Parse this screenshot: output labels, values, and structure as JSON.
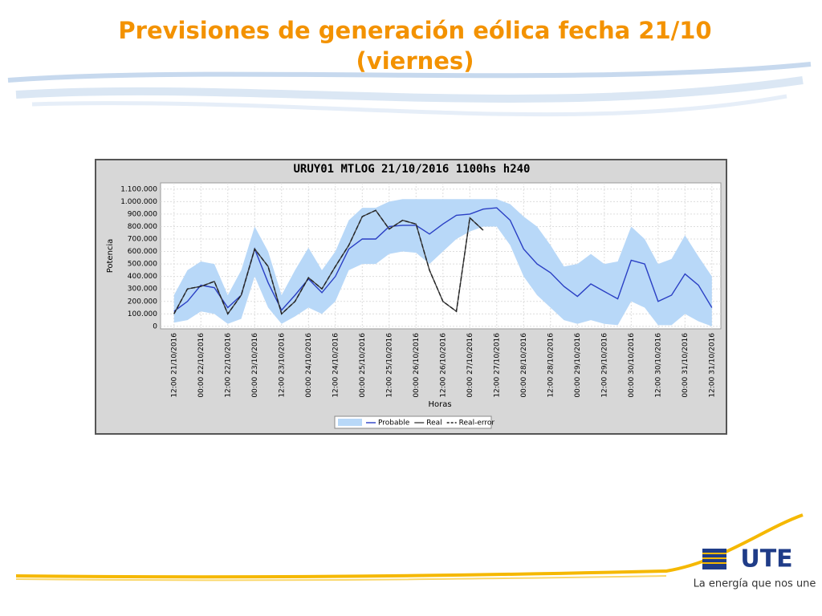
{
  "slide_title": "Previsiones de generación eólica fecha 21/10 (viernes)",
  "logo": {
    "text": "UTE",
    "tagline": "La energía que nos une"
  },
  "chart_data": {
    "type": "line",
    "title": "URUY01 MTLOG 21/10/2016 1100hs  h240",
    "ylabel": "Potencia",
    "xlabel": "Horas",
    "x": [
      0,
      6,
      12,
      18,
      24,
      30,
      36,
      42,
      48,
      54,
      60,
      66,
      72,
      78,
      84,
      90,
      96,
      102,
      108,
      114,
      120,
      126,
      132,
      138,
      144,
      150,
      156,
      162,
      168,
      174,
      180,
      186,
      192,
      198,
      204,
      210,
      216,
      222,
      228,
      234,
      240
    ],
    "xlim": [
      -6,
      244
    ],
    "xticks": [
      {
        "value": 0,
        "label": "12:00 21/10/2016"
      },
      {
        "value": 12,
        "label": "00:00 22/10/2016"
      },
      {
        "value": 24,
        "label": "12:00 22/10/2016"
      },
      {
        "value": 36,
        "label": "00:00 23/10/2016"
      },
      {
        "value": 48,
        "label": "12:00 23/10/2016"
      },
      {
        "value": 60,
        "label": "00:00 24/10/2016"
      },
      {
        "value": 72,
        "label": "12:00 24/10/2016"
      },
      {
        "value": 84,
        "label": "00:00 25/10/2016"
      },
      {
        "value": 96,
        "label": "12:00 25/10/2016"
      },
      {
        "value": 108,
        "label": "00:00 26/10/2016"
      },
      {
        "value": 120,
        "label": "12:00 26/10/2016"
      },
      {
        "value": 132,
        "label": "00:00 27/10/2016"
      },
      {
        "value": 144,
        "label": "12:00 27/10/2016"
      },
      {
        "value": 156,
        "label": "00:00 28/10/2016"
      },
      {
        "value": 168,
        "label": "12:00 28/10/2016"
      },
      {
        "value": 180,
        "label": "00:00 29/10/2016"
      },
      {
        "value": 192,
        "label": "12:00 29/10/2016"
      },
      {
        "value": 204,
        "label": "00:00 30/10/2016"
      },
      {
        "value": 216,
        "label": "12:00 30/10/2016"
      },
      {
        "value": 228,
        "label": "00:00 31/10/2016"
      },
      {
        "value": 240,
        "label": "12:00 31/10/2016"
      }
    ],
    "ylim": [
      -20000,
      1150000
    ],
    "yticks": [
      0,
      {
        "value": 100000,
        "label": "100.000"
      },
      {
        "value": 200000,
        "label": "200.000"
      },
      {
        "value": 300000,
        "label": "300.000"
      },
      {
        "value": 400000,
        "label": "400.000"
      },
      {
        "value": 500000,
        "label": "500.000"
      },
      {
        "value": 600000,
        "label": "600.000"
      },
      {
        "value": 700000,
        "label": "700.000"
      },
      {
        "value": 800000,
        "label": "800.000"
      },
      {
        "value": 900000,
        "label": "900.000"
      },
      {
        "value": 1000000,
        "label": "1.000.000"
      },
      {
        "value": 1100000,
        "label": "1.100.000"
      }
    ],
    "grid": true,
    "band": {
      "color": "#b8d8f8",
      "upper": [
        250000,
        450000,
        520000,
        500000,
        250000,
        450000,
        800000,
        600000,
        250000,
        450000,
        630000,
        450000,
        600000,
        850000,
        950000,
        950000,
        1000000,
        1020000,
        1020000,
        1020000,
        1020000,
        1020000,
        1020000,
        1020000,
        1020000,
        980000,
        880000,
        800000,
        650000,
        480000,
        500000,
        580000,
        500000,
        520000,
        800000,
        700000,
        500000,
        540000,
        730000,
        560000,
        400000
      ],
      "lower": [
        30000,
        50000,
        120000,
        100000,
        20000,
        60000,
        400000,
        150000,
        20000,
        80000,
        150000,
        100000,
        200000,
        450000,
        500000,
        500000,
        580000,
        600000,
        590000,
        500000,
        600000,
        700000,
        760000,
        800000,
        800000,
        650000,
        400000,
        250000,
        150000,
        50000,
        20000,
        50000,
        20000,
        10000,
        200000,
        150000,
        10000,
        10000,
        100000,
        40000,
        0
      ]
    },
    "series": [
      {
        "name": "Probable",
        "color": "#2a3fc4",
        "dash": false,
        "values": [
          120000,
          200000,
          330000,
          310000,
          150000,
          250000,
          620000,
          350000,
          130000,
          250000,
          380000,
          270000,
          400000,
          620000,
          700000,
          700000,
          800000,
          810000,
          810000,
          740000,
          820000,
          890000,
          900000,
          940000,
          950000,
          850000,
          620000,
          500000,
          430000,
          320000,
          240000,
          340000,
          280000,
          220000,
          530000,
          500000,
          200000,
          250000,
          420000,
          330000,
          150000
        ]
      },
      {
        "name": "Real",
        "color": "#444444",
        "dash": false,
        "values": [
          100000,
          300000,
          320000,
          360000,
          100000,
          250000,
          620000,
          480000,
          100000,
          200000,
          390000,
          300000,
          480000,
          650000,
          880000,
          930000,
          780000,
          850000,
          820000,
          450000,
          200000,
          120000,
          870000,
          770000,
          null,
          null,
          null,
          null,
          null,
          null,
          null,
          null,
          null,
          null,
          null,
          null,
          null,
          null,
          null,
          null,
          null
        ]
      },
      {
        "name": "Real-error",
        "color": "#222222",
        "dash": true,
        "values": [
          100000,
          300000,
          320000,
          360000,
          100000,
          250000,
          620000,
          480000,
          100000,
          200000,
          390000,
          300000,
          480000,
          650000,
          880000,
          930000,
          780000,
          850000,
          820000,
          450000,
          200000,
          120000,
          870000,
          770000,
          null,
          null,
          null,
          null,
          null,
          null,
          null,
          null,
          null,
          null,
          null,
          null,
          null,
          null,
          null,
          null,
          null
        ]
      }
    ]
  }
}
